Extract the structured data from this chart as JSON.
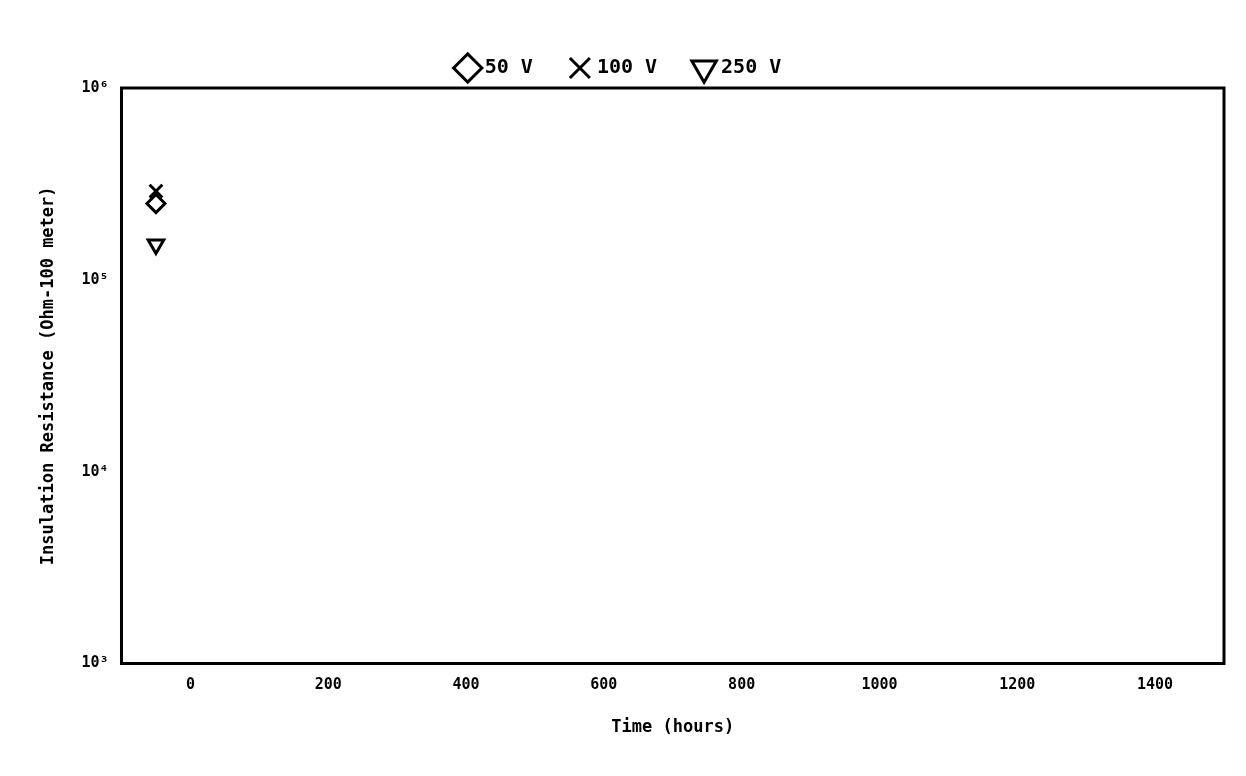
{
  "chart_data": {
    "type": "scatter",
    "xlabel": "Time (hours)",
    "ylabel": "Insulation Resistance (Ohm-100 meter)",
    "series": [
      {
        "name": "50 V",
        "color": "#000000",
        "marker": "diamond",
        "values": [
          250000
        ]
      },
      {
        "name": "100 V",
        "color": "#000000",
        "marker": "cross",
        "values": [
          290000
        ]
      },
      {
        "name": "250 V",
        "color": "#000000",
        "marker": "triangle",
        "values": [
          153000
        ]
      }
    ],
    "x": [
      -50
    ],
    "xlim": [
      -100,
      1500
    ],
    "xticks": [
      0,
      200,
      400,
      600,
      800,
      1000,
      1200,
      1400
    ],
    "log": "y",
    "ylim": [
      1000,
      1000000
    ],
    "yticks": [
      {
        "value": 1000,
        "label": "10³"
      },
      {
        "value": 10000,
        "label": "10⁴"
      },
      {
        "value": 100000,
        "label": "10⁵"
      },
      {
        "value": 1000000,
        "label": "10⁶"
      }
    ],
    "grid": false,
    "legend": "top"
  }
}
